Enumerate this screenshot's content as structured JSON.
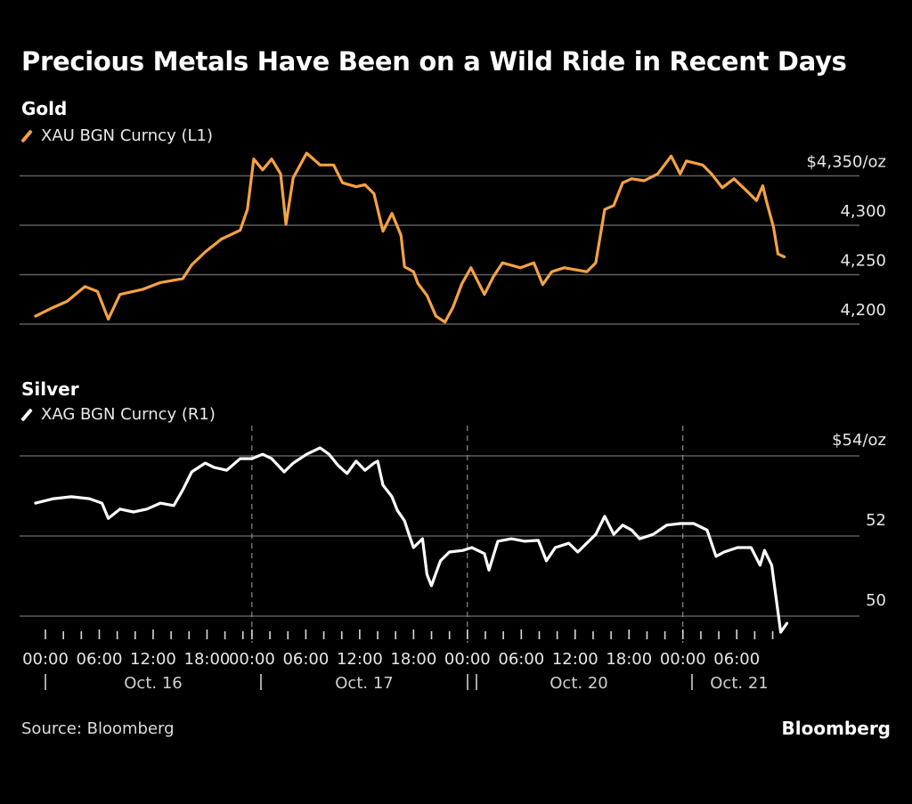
{
  "title": "Precious Metals Have Been on a Wild Ride in Recent Days",
  "source": "Source: Bloomberg",
  "brand": "Bloomberg",
  "colors": {
    "gold": "#F5A242",
    "silver": "#FFFFFF",
    "grid": "#5e5e5e",
    "background": "#000000"
  },
  "chart_data": [
    {
      "type": "line",
      "title": "Gold",
      "legend": [
        {
          "name": "XAU BGN Curncy (L1)",
          "color": "#F5A242"
        }
      ],
      "legend_position": "top-left",
      "y_axis_side": "right",
      "yticks": [
        4200,
        4250,
        4300,
        4350
      ],
      "ytick_labels": [
        "4,200",
        "4,250",
        "4,300",
        "$4,350/oz"
      ],
      "ylim": [
        4200,
        4370
      ],
      "grid": true,
      "x_unit": "trading hours since Oct. 16 00:00",
      "series": [
        {
          "name": "XAU BGN Curncy",
          "x": [
            -1.1,
            0.9,
            2.4,
            4.4,
            5.8,
            7.0,
            8.3,
            10.8,
            12.8,
            15.3,
            16.3,
            17.8,
            19.6,
            21.7,
            22.5,
            23.2,
            24.2,
            25.2,
            26.2,
            26.8,
            27.6,
            29.1,
            30.6,
            32.1,
            33.1,
            34.6,
            35.6,
            36.6,
            37.6,
            38.6,
            39.6,
            40.0,
            41.0,
            41.5,
            42.5,
            43.5,
            44.5,
            45.4,
            46.4,
            47.4,
            48.9,
            49.9,
            50.9,
            52.9,
            54.4,
            55.4,
            56.4,
            57.8,
            60.3,
            61.3,
            62.3,
            63.3,
            64.3,
            65.3,
            66.7,
            68.2,
            69.7,
            70.7,
            71.4,
            73.2,
            74.2,
            75.4,
            76.7,
            78.2,
            79.2,
            79.9,
            80.3,
            81.1,
            81.6,
            82.3
          ],
          "values": [
            4208,
            4217,
            4223,
            4238,
            4233,
            4205,
            4230,
            4235,
            4242,
            4246,
            4260,
            4273,
            4286,
            4295,
            4316,
            4367,
            4356,
            4367,
            4352,
            4301,
            4348,
            4373,
            4361,
            4361,
            4343,
            4339,
            4341,
            4332,
            4294,
            4312,
            4290,
            4258,
            4253,
            4241,
            4229,
            4208,
            4202,
            4217,
            4241,
            4257,
            4230,
            4248,
            4262,
            4257,
            4262,
            4240,
            4253,
            4257,
            4253,
            4262,
            4316,
            4320,
            4343,
            4347,
            4345,
            4352,
            4370,
            4352,
            4365,
            4361,
            4352,
            4338,
            4347,
            4334,
            4325,
            4340,
            4325,
            4298,
            4271,
            4268
          ]
        }
      ]
    },
    {
      "type": "line",
      "title": "Silver",
      "legend": [
        {
          "name": "XAG BGN Curncy (R1)",
          "color": "#FFFFFF"
        }
      ],
      "legend_position": "top-left",
      "y_axis_side": "right",
      "yticks": [
        50,
        52,
        54
      ],
      "ytick_labels": [
        "50",
        "52",
        "$54/oz"
      ],
      "ylim": [
        49.6,
        54.5
      ],
      "grid": true,
      "x_unit": "trading hours since Oct. 16 00:00",
      "series": [
        {
          "name": "XAG BGN Curncy",
          "x": [
            -1.1,
            0.9,
            2.9,
            4.9,
            6.3,
            7.0,
            8.3,
            9.8,
            11.3,
            12.8,
            14.3,
            15.3,
            16.3,
            17.8,
            18.8,
            20.2,
            21.7,
            23.0,
            24.2,
            25.2,
            26.6,
            27.6,
            29.1,
            30.6,
            31.6,
            32.6,
            33.6,
            34.6,
            35.6,
            36.6,
            37.0,
            37.6,
            38.6,
            39.2,
            40.0,
            40.5,
            41.0,
            42.0,
            42.5,
            43.0,
            44.0,
            45.0,
            46.5,
            47.5,
            48.9,
            49.4,
            50.4,
            51.9,
            53.4,
            54.9,
            55.8,
            56.8,
            58.3,
            59.3,
            60.3,
            61.3,
            62.3,
            63.3,
            64.3,
            65.3,
            66.2,
            67.7,
            69.2,
            70.7,
            72.2,
            73.7,
            74.7,
            75.6,
            77.1,
            78.6,
            79.6,
            80.1,
            80.9,
            81.3,
            81.9,
            82.6
          ],
          "values": [
            52.82,
            52.93,
            52.98,
            52.93,
            52.82,
            52.44,
            52.67,
            52.6,
            52.67,
            52.82,
            52.76,
            53.15,
            53.6,
            53.82,
            53.71,
            53.64,
            53.93,
            53.93,
            54.04,
            53.93,
            53.6,
            53.82,
            54.04,
            54.2,
            54.04,
            53.76,
            53.56,
            53.87,
            53.64,
            53.82,
            53.87,
            53.27,
            52.98,
            52.64,
            52.38,
            52.04,
            51.71,
            51.93,
            51.04,
            50.76,
            51.38,
            51.6,
            51.64,
            51.71,
            51.56,
            51.15,
            51.87,
            51.93,
            51.87,
            51.89,
            51.38,
            51.71,
            51.82,
            51.6,
            51.82,
            52.04,
            52.49,
            52.04,
            52.27,
            52.15,
            51.93,
            52.04,
            52.27,
            52.31,
            52.31,
            52.15,
            51.49,
            51.6,
            51.71,
            51.71,
            51.27,
            51.64,
            51.27,
            50.6,
            49.6,
            49.82
          ]
        }
      ]
    }
  ],
  "x_axis": {
    "hour_labels": [
      "00:00",
      "06:00",
      "12:00",
      "18:00",
      "00:00",
      "06:00",
      "12:00",
      "18:00",
      "00:00",
      "06:00",
      "12:00",
      "18:00",
      "00:00",
      "06:00"
    ],
    "date_labels": [
      "Oct. 16",
      "Oct. 17",
      "Oct. 20",
      "Oct. 21"
    ],
    "tick_interval_hours": 2
  }
}
